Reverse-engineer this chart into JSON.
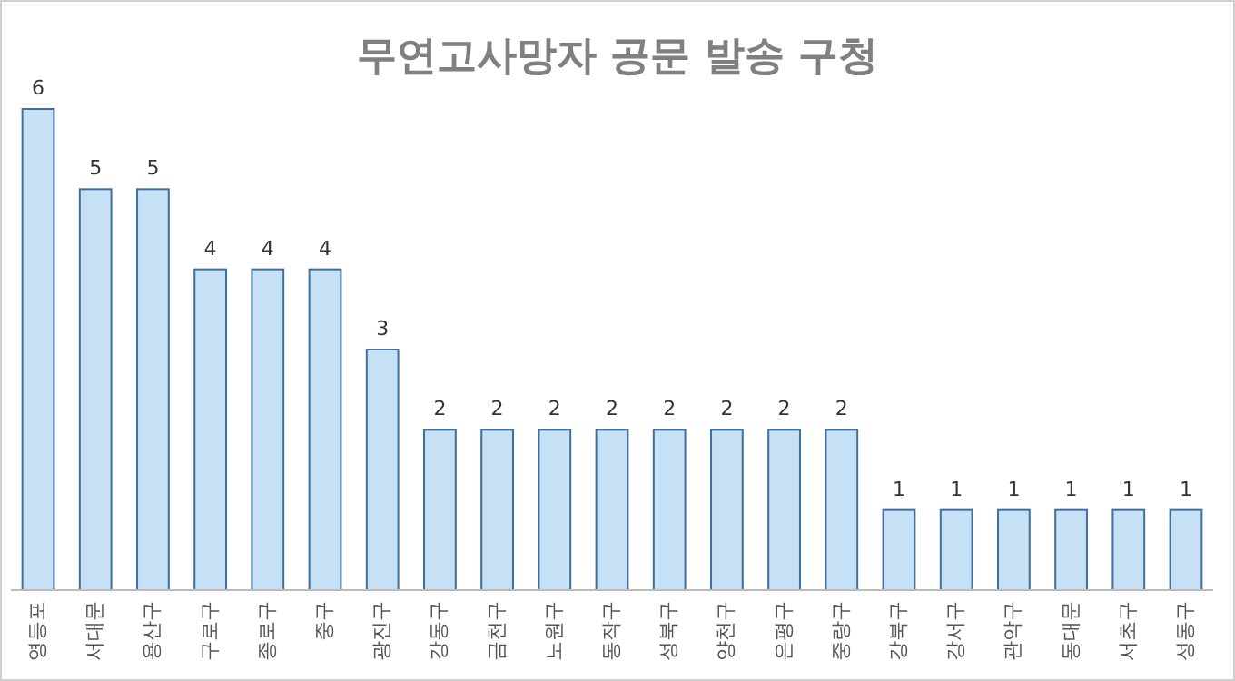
{
  "chart_data": {
    "type": "bar",
    "title": "무연고사망자 공문 발송 구청",
    "categories": [
      "영등포",
      "서대문",
      "용산구",
      "구로구",
      "종로구",
      "중구",
      "광진구",
      "강동구",
      "금천구",
      "노원구",
      "동작구",
      "성북구",
      "양천구",
      "은평구",
      "중랑구",
      "강북구",
      "강서구",
      "관악구",
      "동대문",
      "서초구",
      "성동구"
    ],
    "values": [
      6,
      5,
      5,
      4,
      4,
      4,
      3,
      2,
      2,
      2,
      2,
      2,
      2,
      2,
      2,
      1,
      1,
      1,
      1,
      1,
      1
    ],
    "color": "#c6e0f5",
    "data_labels": true
  }
}
